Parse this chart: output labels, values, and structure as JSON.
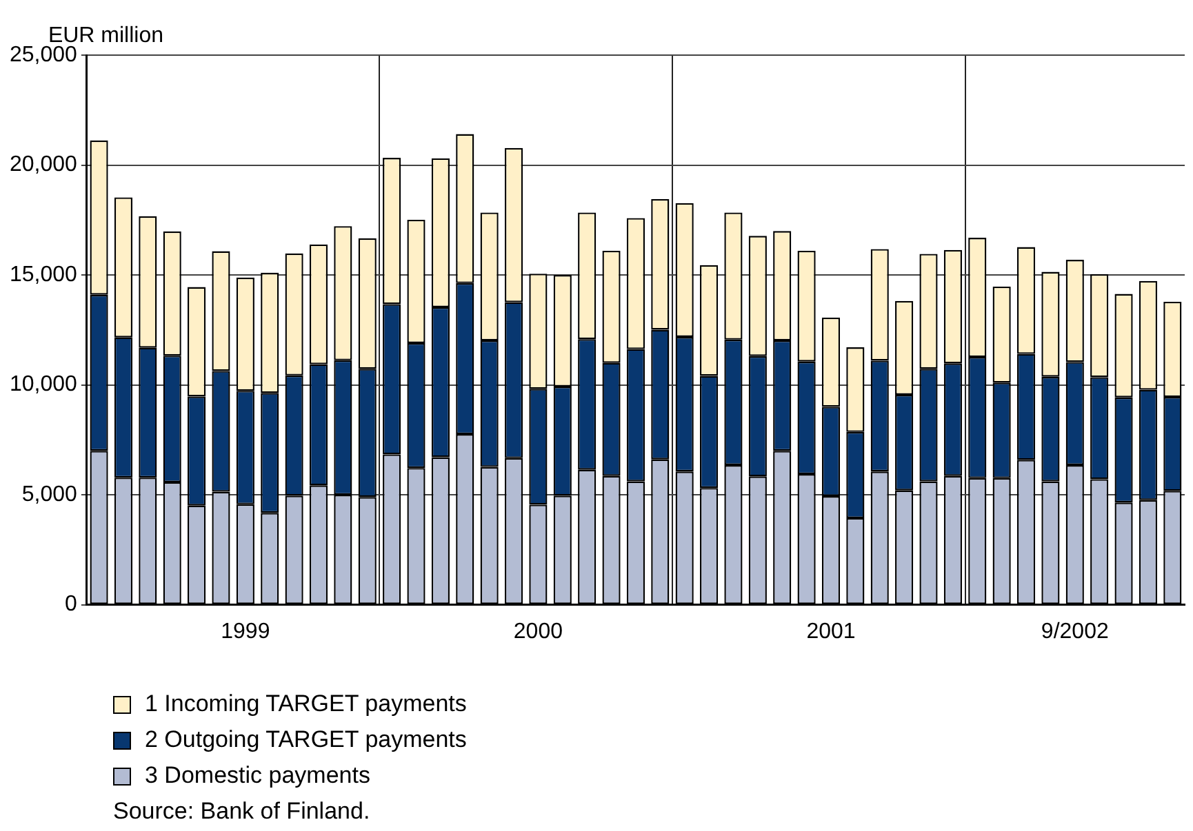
{
  "chart_data": {
    "type": "bar",
    "stacked": true,
    "ylabel": "EUR million",
    "categories": [
      null,
      null,
      null,
      null,
      null,
      null,
      "1999",
      null,
      null,
      null,
      null,
      null,
      null,
      null,
      null,
      null,
      null,
      null,
      "2000",
      null,
      null,
      null,
      null,
      null,
      null,
      null,
      null,
      null,
      null,
      null,
      "2001",
      null,
      null,
      null,
      null,
      null,
      null,
      null,
      null,
      null,
      "9/2002",
      null,
      null,
      null,
      null
    ],
    "series": [
      {
        "name": "3 Domestic payments",
        "color": "#b3bcd3",
        "values": [
          7000,
          5780,
          5780,
          5570,
          4510,
          5140,
          4570,
          4180,
          4960,
          5430,
          5000,
          4900,
          6840,
          6220,
          6710,
          7760,
          6270,
          6670,
          4550,
          4960,
          6140,
          5860,
          5610,
          6610,
          6060,
          5310,
          6350,
          5840,
          7000,
          5940,
          4940,
          3940,
          6060,
          5200,
          5610,
          5860,
          5760,
          5760,
          6590,
          5610,
          6350,
          5710,
          4650,
          4760,
          5180
        ]
      },
      {
        "name": "2 Outgoing TARGET payments",
        "color": "#083770",
        "values": [
          7100,
          6380,
          5910,
          5760,
          4960,
          5490,
          5160,
          5450,
          5470,
          5510,
          6120,
          5830,
          6830,
          5680,
          6820,
          6870,
          5750,
          7090,
          5270,
          4960,
          5940,
          5140,
          6020,
          5900,
          6120,
          5100,
          5710,
          5470,
          5020,
          5120,
          4060,
          3920,
          5040,
          4350,
          5120,
          5120,
          5510,
          4340,
          4820,
          4760,
          4690,
          4640,
          4780,
          5020,
          4270
        ]
      },
      {
        "name": "1 Incoming TARGET payments",
        "color": "#fff0c8",
        "values": [
          7020,
          6370,
          5980,
          5650,
          4980,
          5450,
          5150,
          5470,
          5550,
          5450,
          6100,
          5940,
          6660,
          5610,
          6780,
          6780,
          5820,
          7020,
          5240,
          5080,
          5760,
          5100,
          5960,
          5940,
          6090,
          5040,
          5780,
          5470,
          4980,
          5040,
          4060,
          3850,
          5080,
          4270,
          5230,
          5160,
          5420,
          4370,
          4860,
          4770,
          4650,
          4690,
          4710,
          4950,
          4330
        ]
      }
    ],
    "ylim": [
      0,
      25000
    ],
    "yticks": [
      {
        "value": 0,
        "label": "0"
      },
      {
        "value": 5000,
        "label": "5,000"
      },
      {
        "value": 10000,
        "label": "10,000"
      },
      {
        "value": 15000,
        "label": "15,000"
      },
      {
        "value": 20000,
        "label": "20,000"
      },
      {
        "value": 25000,
        "label": "25,000"
      }
    ],
    "grid": true,
    "legend": "bottom left",
    "annotations": [
      "Source: Bank of Finland."
    ]
  }
}
